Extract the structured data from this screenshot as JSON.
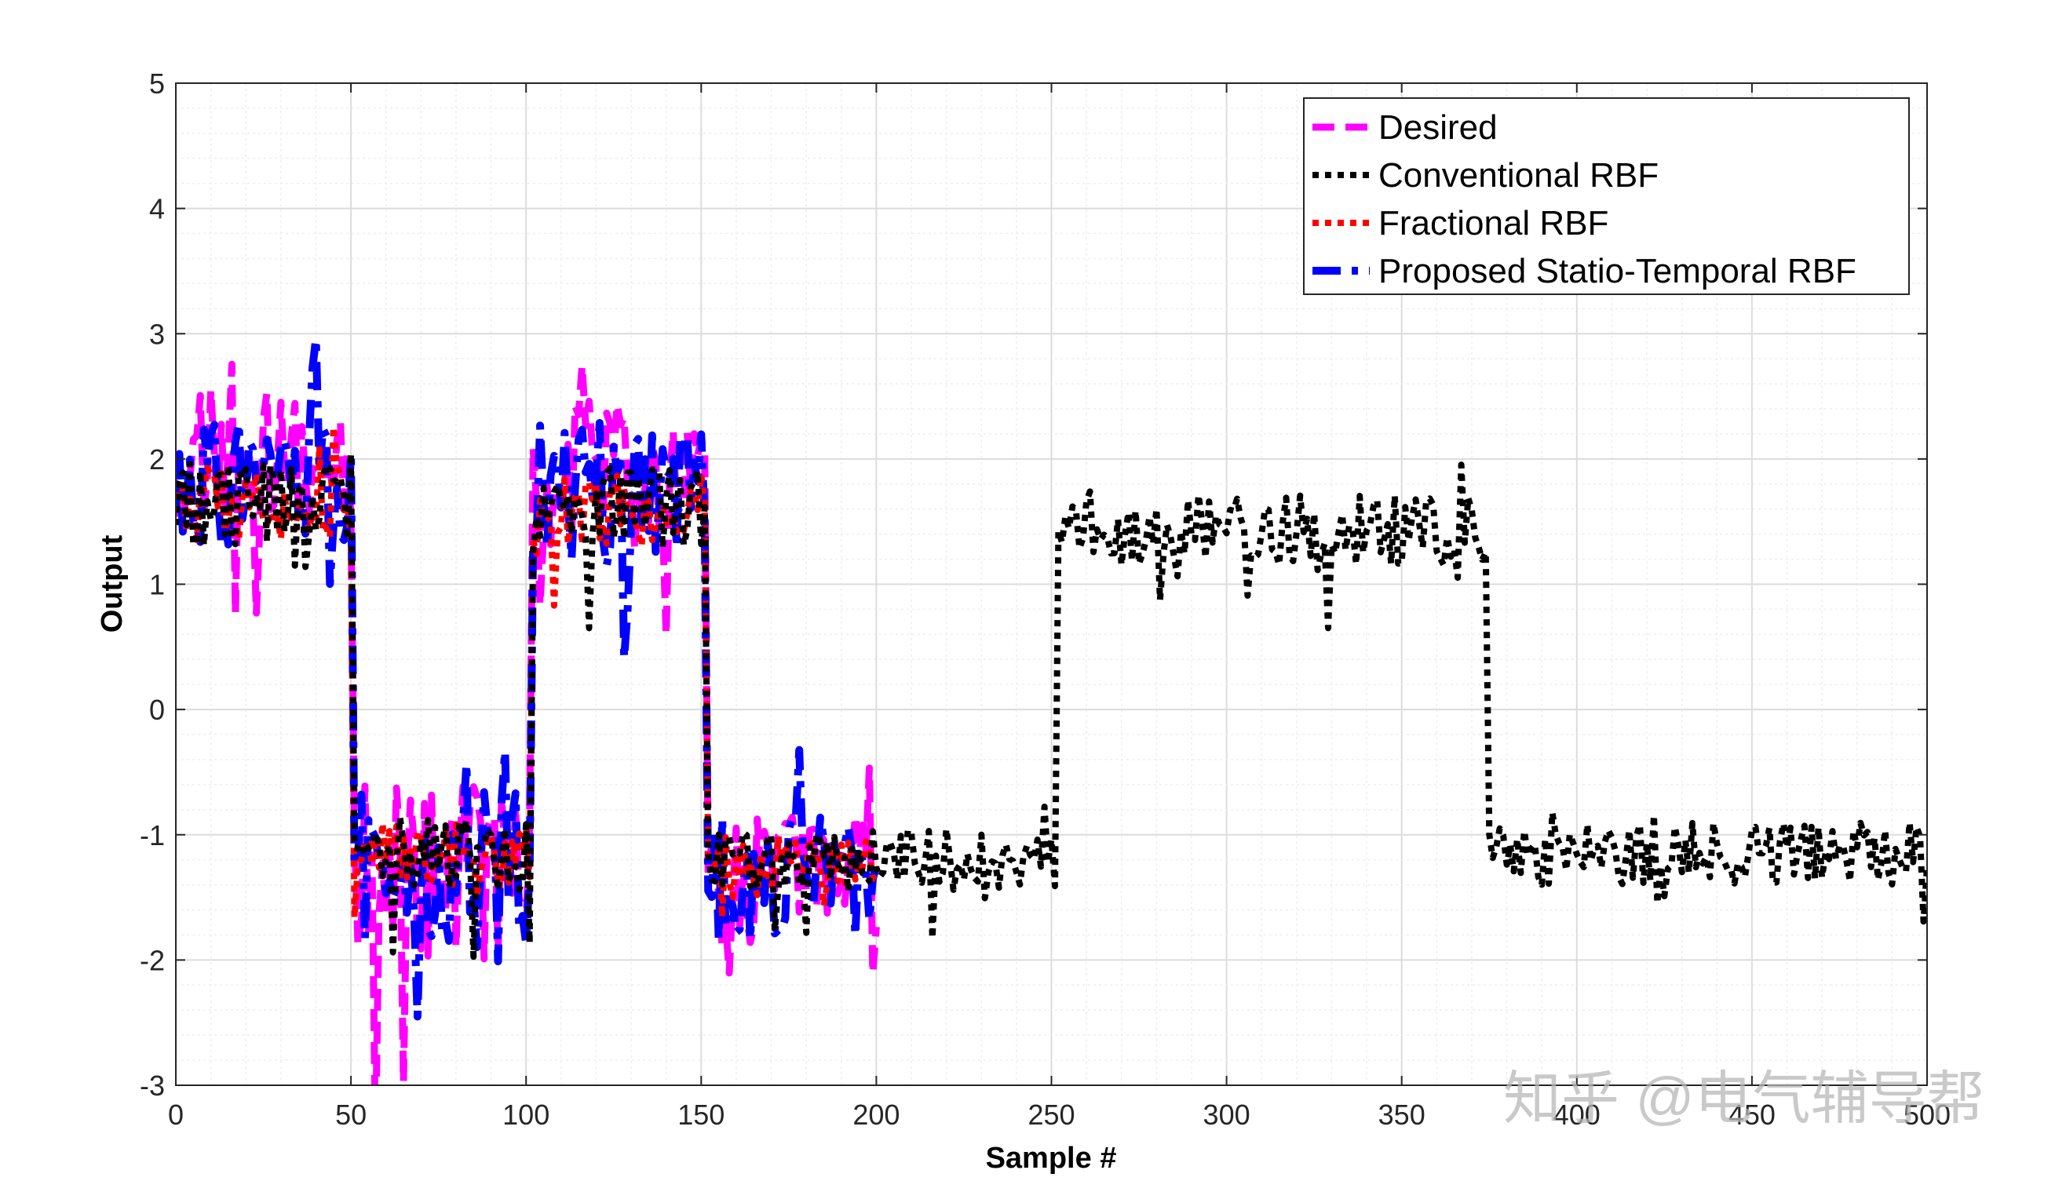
{
  "chart_data": {
    "type": "line",
    "title": "",
    "xlabel": "Sample #",
    "ylabel": "Output",
    "xlim": [
      0,
      500
    ],
    "ylim": [
      -3,
      5
    ],
    "xticks": [
      0,
      50,
      100,
      150,
      200,
      250,
      300,
      350,
      400,
      450,
      500
    ],
    "yticks": [
      -3,
      -2,
      -1,
      0,
      1,
      2,
      3,
      4,
      5
    ],
    "grid": "on (major and minor)",
    "legend_position": "top-right",
    "series": [
      {
        "name": "Desired",
        "color": "#ff00ff",
        "style": "dashed",
        "x_range": [
          0,
          200
        ],
        "segments": [
          {
            "x": [
              0,
              51
            ],
            "level": 2.0,
            "spread": 0.55
          },
          {
            "x": [
              51,
              102
            ],
            "level": -1.3,
            "spread": 0.7
          },
          {
            "x": [
              102,
              152
            ],
            "level": 1.9,
            "spread": 0.6
          },
          {
            "x": [
              152,
              200
            ],
            "level": -1.4,
            "spread": 0.55
          }
        ]
      },
      {
        "name": "Conventional RBF",
        "color": "#000000",
        "style": "dotted",
        "x_range": [
          0,
          500
        ],
        "segments": [
          {
            "x": [
              0,
              51
            ],
            "level": 1.65,
            "spread": 0.35
          },
          {
            "x": [
              51,
              102
            ],
            "level": -1.15,
            "spread": 0.3
          },
          {
            "x": [
              102,
              152
            ],
            "level": 1.6,
            "spread": 0.35
          },
          {
            "x": [
              152,
              252
            ],
            "level": -1.2,
            "spread": 0.25
          },
          {
            "x": [
              252,
              375
            ],
            "level": 1.45,
            "spread": 0.3
          },
          {
            "x": [
              375,
              500
            ],
            "level": -1.15,
            "spread": 0.25
          }
        ]
      },
      {
        "name": "Fractional RBF",
        "color": "#ff0000",
        "style": "dotted",
        "x_range": [
          0,
          200
        ],
        "segments": [
          {
            "x": [
              0,
              51
            ],
            "level": 1.65,
            "spread": 0.3
          },
          {
            "x": [
              51,
              102
            ],
            "level": -1.15,
            "spread": 0.25
          },
          {
            "x": [
              102,
              152
            ],
            "level": 1.6,
            "spread": 0.3
          },
          {
            "x": [
              152,
              200
            ],
            "level": -1.2,
            "spread": 0.2
          }
        ]
      },
      {
        "name": "Proposed Statio-Temporal RBF",
        "color": "#0000ff",
        "style": "dashdot",
        "x_range": [
          0,
          200
        ],
        "segments": [
          {
            "x": [
              0,
              51
            ],
            "level": 1.8,
            "spread": 0.5
          },
          {
            "x": [
              51,
              102
            ],
            "level": -1.3,
            "spread": 0.65
          },
          {
            "x": [
              102,
              152
            ],
            "level": 1.75,
            "spread": 0.55
          },
          {
            "x": [
              152,
              200
            ],
            "level": -1.35,
            "spread": 0.5
          }
        ]
      }
    ]
  },
  "watermark": {
    "text": "知乎 @电气辅导帮"
  }
}
